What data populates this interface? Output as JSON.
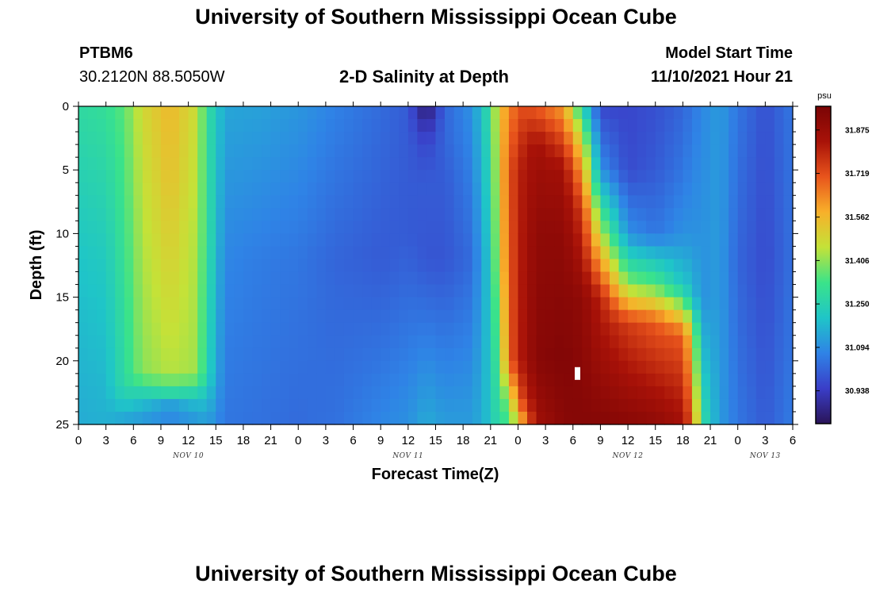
{
  "page": {
    "title_top": "University of Southern Mississippi Ocean Cube",
    "title_bottom": "University of Southern Mississippi Ocean Cube",
    "station_id": "PTBM6",
    "station_coords": "30.2120N  88.5050W",
    "plot_title": "2-D Salinity at Depth",
    "model_start_label": "Model Start Time",
    "model_start_value": "11/10/2021 Hour 21"
  },
  "chart_data": {
    "type": "heatmap",
    "title": "2-D Salinity at Depth",
    "xlabel": "Forecast Time(Z)",
    "ylabel": "Depth (ft)",
    "x_range_hours": [
      0,
      78
    ],
    "y_range_ft": [
      0,
      25
    ],
    "x_tick_labels": [
      "0",
      "3",
      "6",
      "9",
      "12",
      "15",
      "18",
      "21",
      "0",
      "3",
      "6",
      "9",
      "12",
      "15",
      "18",
      "21",
      "0",
      "3",
      "6",
      "9",
      "12",
      "15",
      "18",
      "21",
      "0",
      "3",
      "6"
    ],
    "y_tick_labels": [
      "0",
      "5",
      "10",
      "15",
      "20",
      "25"
    ],
    "date_labels": [
      {
        "text": "NOV 10",
        "hour": 12
      },
      {
        "text": "NOV 11",
        "hour": 36
      },
      {
        "text": "NOV 12",
        "hour": 60
      },
      {
        "text": "NOV 13",
        "hour": 75
      }
    ],
    "colorbar": {
      "unit": "psu",
      "min": 30.82,
      "max": 31.96,
      "tick_values": [
        31.875,
        31.719,
        31.562,
        31.406,
        31.25,
        31.094,
        30.938
      ],
      "tick_labels": [
        "31.875",
        "31.719",
        "31.562",
        "31.406",
        "31.250",
        "31.094",
        "30.938"
      ],
      "colors": [
        "#2a1458",
        "#3a3ec8",
        "#2f83e6",
        "#1fc5c8",
        "#3ae38a",
        "#c4e238",
        "#f8b02a",
        "#e8541c",
        "#a81208",
        "#7a0405"
      ]
    },
    "marker": {
      "hour": 54.5,
      "depth_ft": 21
    },
    "grid_hours": [
      0,
      1,
      2,
      3,
      4,
      5,
      6,
      7,
      8,
      9,
      10,
      11,
      12,
      13,
      14,
      15,
      16,
      17,
      18,
      19,
      20,
      21,
      22,
      23,
      24,
      25,
      26,
      27,
      28,
      29,
      30,
      31,
      32,
      33,
      34,
      35,
      36,
      37,
      38,
      39,
      40,
      41,
      42,
      43,
      44,
      45,
      46,
      47,
      48,
      49,
      50,
      51,
      52,
      53,
      54,
      55,
      56,
      57,
      58,
      59,
      60,
      61,
      62,
      63,
      64,
      65,
      66,
      67,
      68,
      69,
      70,
      71,
      72,
      73,
      74,
      75,
      76,
      77
    ],
    "grid_depths_ft": [
      0.5,
      1.5,
      2.5,
      3.5,
      4.5,
      5.5,
      6.5,
      7.5,
      8.5,
      9.5,
      10.5,
      11.5,
      12.5,
      13.5,
      14.5,
      15.5,
      16.5,
      17.5,
      18.5,
      19.5,
      20.5,
      21.5,
      22.5,
      23.5,
      24.5
    ],
    "salinity_profiles": [
      {
        "hour": 0,
        "depths": [
          0,
          12,
          25
        ],
        "values": [
          31.28,
          31.2,
          31.15
        ]
      },
      {
        "hour": 3,
        "depths": [
          0,
          12,
          25
        ],
        "values": [
          31.3,
          31.22,
          31.16
        ]
      },
      {
        "hour": 5,
        "depths": [
          0,
          10,
          22,
          25
        ],
        "values": [
          31.36,
          31.32,
          31.28,
          31.12
        ]
      },
      {
        "hour": 7,
        "depths": [
          0,
          10,
          21,
          23,
          25
        ],
        "values": [
          31.48,
          31.44,
          31.4,
          31.2,
          31.1
        ]
      },
      {
        "hour": 10,
        "depths": [
          0,
          5,
          15,
          21,
          23,
          24,
          25
        ],
        "values": [
          31.56,
          31.54,
          31.48,
          31.44,
          31.22,
          31.02,
          31.15
        ]
      },
      {
        "hour": 13,
        "depths": [
          0,
          10,
          21,
          23,
          25
        ],
        "values": [
          31.46,
          31.43,
          31.42,
          31.2,
          31.1
        ]
      },
      {
        "hour": 14,
        "depths": [
          0,
          10,
          21,
          25
        ],
        "values": [
          31.3,
          31.3,
          31.25,
          31.12
        ]
      },
      {
        "hour": 16,
        "depths": [
          0,
          12,
          25
        ],
        "values": [
          31.14,
          31.08,
          31.05
        ]
      },
      {
        "hour": 20,
        "depths": [
          0,
          12,
          25
        ],
        "values": [
          31.13,
          31.06,
          31.04
        ]
      },
      {
        "hour": 24,
        "depths": [
          0,
          12,
          25
        ],
        "values": [
          31.11,
          31.05,
          31.03
        ]
      },
      {
        "hour": 28,
        "depths": [
          0,
          12,
          25
        ],
        "values": [
          31.07,
          31.02,
          31.04
        ]
      },
      {
        "hour": 33,
        "depths": [
          0,
          12,
          25
        ],
        "values": [
          31.03,
          31.0,
          31.08
        ]
      },
      {
        "hour": 36,
        "depths": [
          0,
          10,
          25
        ],
        "values": [
          31.0,
          31.0,
          31.1
        ]
      },
      {
        "hour": 38,
        "depths": [
          0,
          1,
          3,
          6,
          12,
          25
        ],
        "values": [
          30.83,
          30.88,
          30.96,
          31.0,
          30.99,
          31.15
        ]
      },
      {
        "hour": 40,
        "depths": [
          0,
          2,
          6,
          12,
          25
        ],
        "values": [
          31.02,
          31.02,
          31.0,
          30.99,
          31.12
        ]
      },
      {
        "hour": 43,
        "depths": [
          0,
          12,
          25
        ],
        "values": [
          31.1,
          31.03,
          31.12
        ]
      },
      {
        "hour": 45,
        "depths": [
          0,
          12,
          25
        ],
        "values": [
          31.3,
          31.22,
          31.2
        ]
      },
      {
        "hour": 46,
        "depths": [
          0,
          12,
          25
        ],
        "values": [
          31.55,
          31.5,
          31.3
        ]
      },
      {
        "hour": 47,
        "depths": [
          0,
          5,
          20,
          23,
          25
        ],
        "values": [
          31.62,
          31.7,
          31.68,
          31.4,
          31.3
        ]
      },
      {
        "hour": 48,
        "depths": [
          0,
          5,
          20,
          23,
          25
        ],
        "values": [
          31.72,
          31.8,
          31.8,
          31.7,
          31.5
        ]
      },
      {
        "hour": 50,
        "depths": [
          0,
          3,
          10,
          20,
          25
        ],
        "values": [
          31.7,
          31.85,
          31.9,
          31.92,
          31.85
        ]
      },
      {
        "hour": 53,
        "depths": [
          0,
          5,
          10,
          20,
          25
        ],
        "values": [
          31.6,
          31.85,
          31.9,
          31.94,
          31.92
        ]
      },
      {
        "hour": 55,
        "depths": [
          0,
          3,
          8,
          15,
          25
        ],
        "values": [
          31.25,
          31.5,
          31.75,
          31.9,
          31.93
        ]
      },
      {
        "hour": 57,
        "depths": [
          0,
          5,
          10,
          15,
          25
        ],
        "values": [
          30.96,
          31.1,
          31.45,
          31.8,
          31.93
        ]
      },
      {
        "hour": 60,
        "depths": [
          0,
          5,
          10,
          14,
          17,
          25
        ],
        "values": [
          30.96,
          30.97,
          31.1,
          31.4,
          31.75,
          31.92
        ]
      },
      {
        "hour": 63,
        "depths": [
          0,
          5,
          10,
          14,
          17,
          25
        ],
        "values": [
          30.98,
          31.0,
          31.05,
          31.35,
          31.7,
          31.9
        ]
      },
      {
        "hour": 66,
        "depths": [
          0,
          5,
          10,
          14,
          18,
          25
        ],
        "values": [
          31.02,
          31.05,
          31.1,
          31.2,
          31.7,
          31.85
        ]
      },
      {
        "hour": 67,
        "depths": [
          0,
          10,
          15,
          18,
          25
        ],
        "values": [
          31.05,
          31.1,
          31.2,
          31.5,
          31.7
        ]
      },
      {
        "hour": 68,
        "depths": [
          0,
          10,
          15,
          20,
          25
        ],
        "values": [
          31.08,
          31.1,
          31.1,
          31.2,
          31.3
        ]
      },
      {
        "hour": 70,
        "depths": [
          0,
          12,
          25
        ],
        "values": [
          31.12,
          31.12,
          31.12
        ]
      },
      {
        "hour": 72,
        "depths": [
          0,
          12,
          25
        ],
        "values": [
          31.05,
          31.02,
          31.05
        ]
      },
      {
        "hour": 75,
        "depths": [
          0,
          12,
          25
        ],
        "values": [
          30.98,
          30.97,
          31.0
        ]
      },
      {
        "hour": 78,
        "depths": [
          0,
          12,
          25
        ],
        "values": [
          31.05,
          31.04,
          31.06
        ]
      }
    ]
  }
}
